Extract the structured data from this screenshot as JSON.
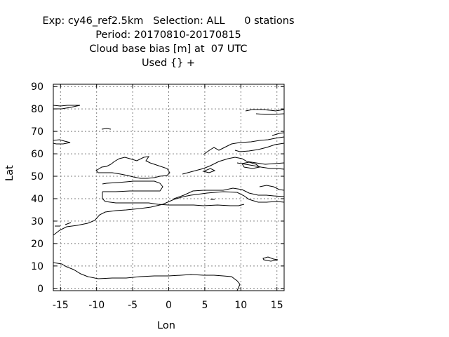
{
  "header": {
    "line1": "Exp: cy46_ref2.5km   Selection: ALL      0 stations",
    "line2": "Period: 20170810-20170815",
    "line3": "Cloud base bias [m] at  07 UTC",
    "line4": "Used {} +"
  },
  "map": {
    "xlabel": "Lon",
    "ylabel": "Lat",
    "x_ticks": [
      "-15",
      "-10",
      "-5",
      "0",
      "5",
      "10",
      "15"
    ],
    "y_ticks": [
      "0",
      "10",
      "20",
      "30",
      "40",
      "50",
      "60",
      "70",
      "80",
      "90"
    ],
    "lon_range": [
      -16,
      16
    ],
    "lat_range": [
      -1,
      91
    ],
    "grid": true,
    "coastline_color": "#000000",
    "grid_color": "#808080"
  }
}
